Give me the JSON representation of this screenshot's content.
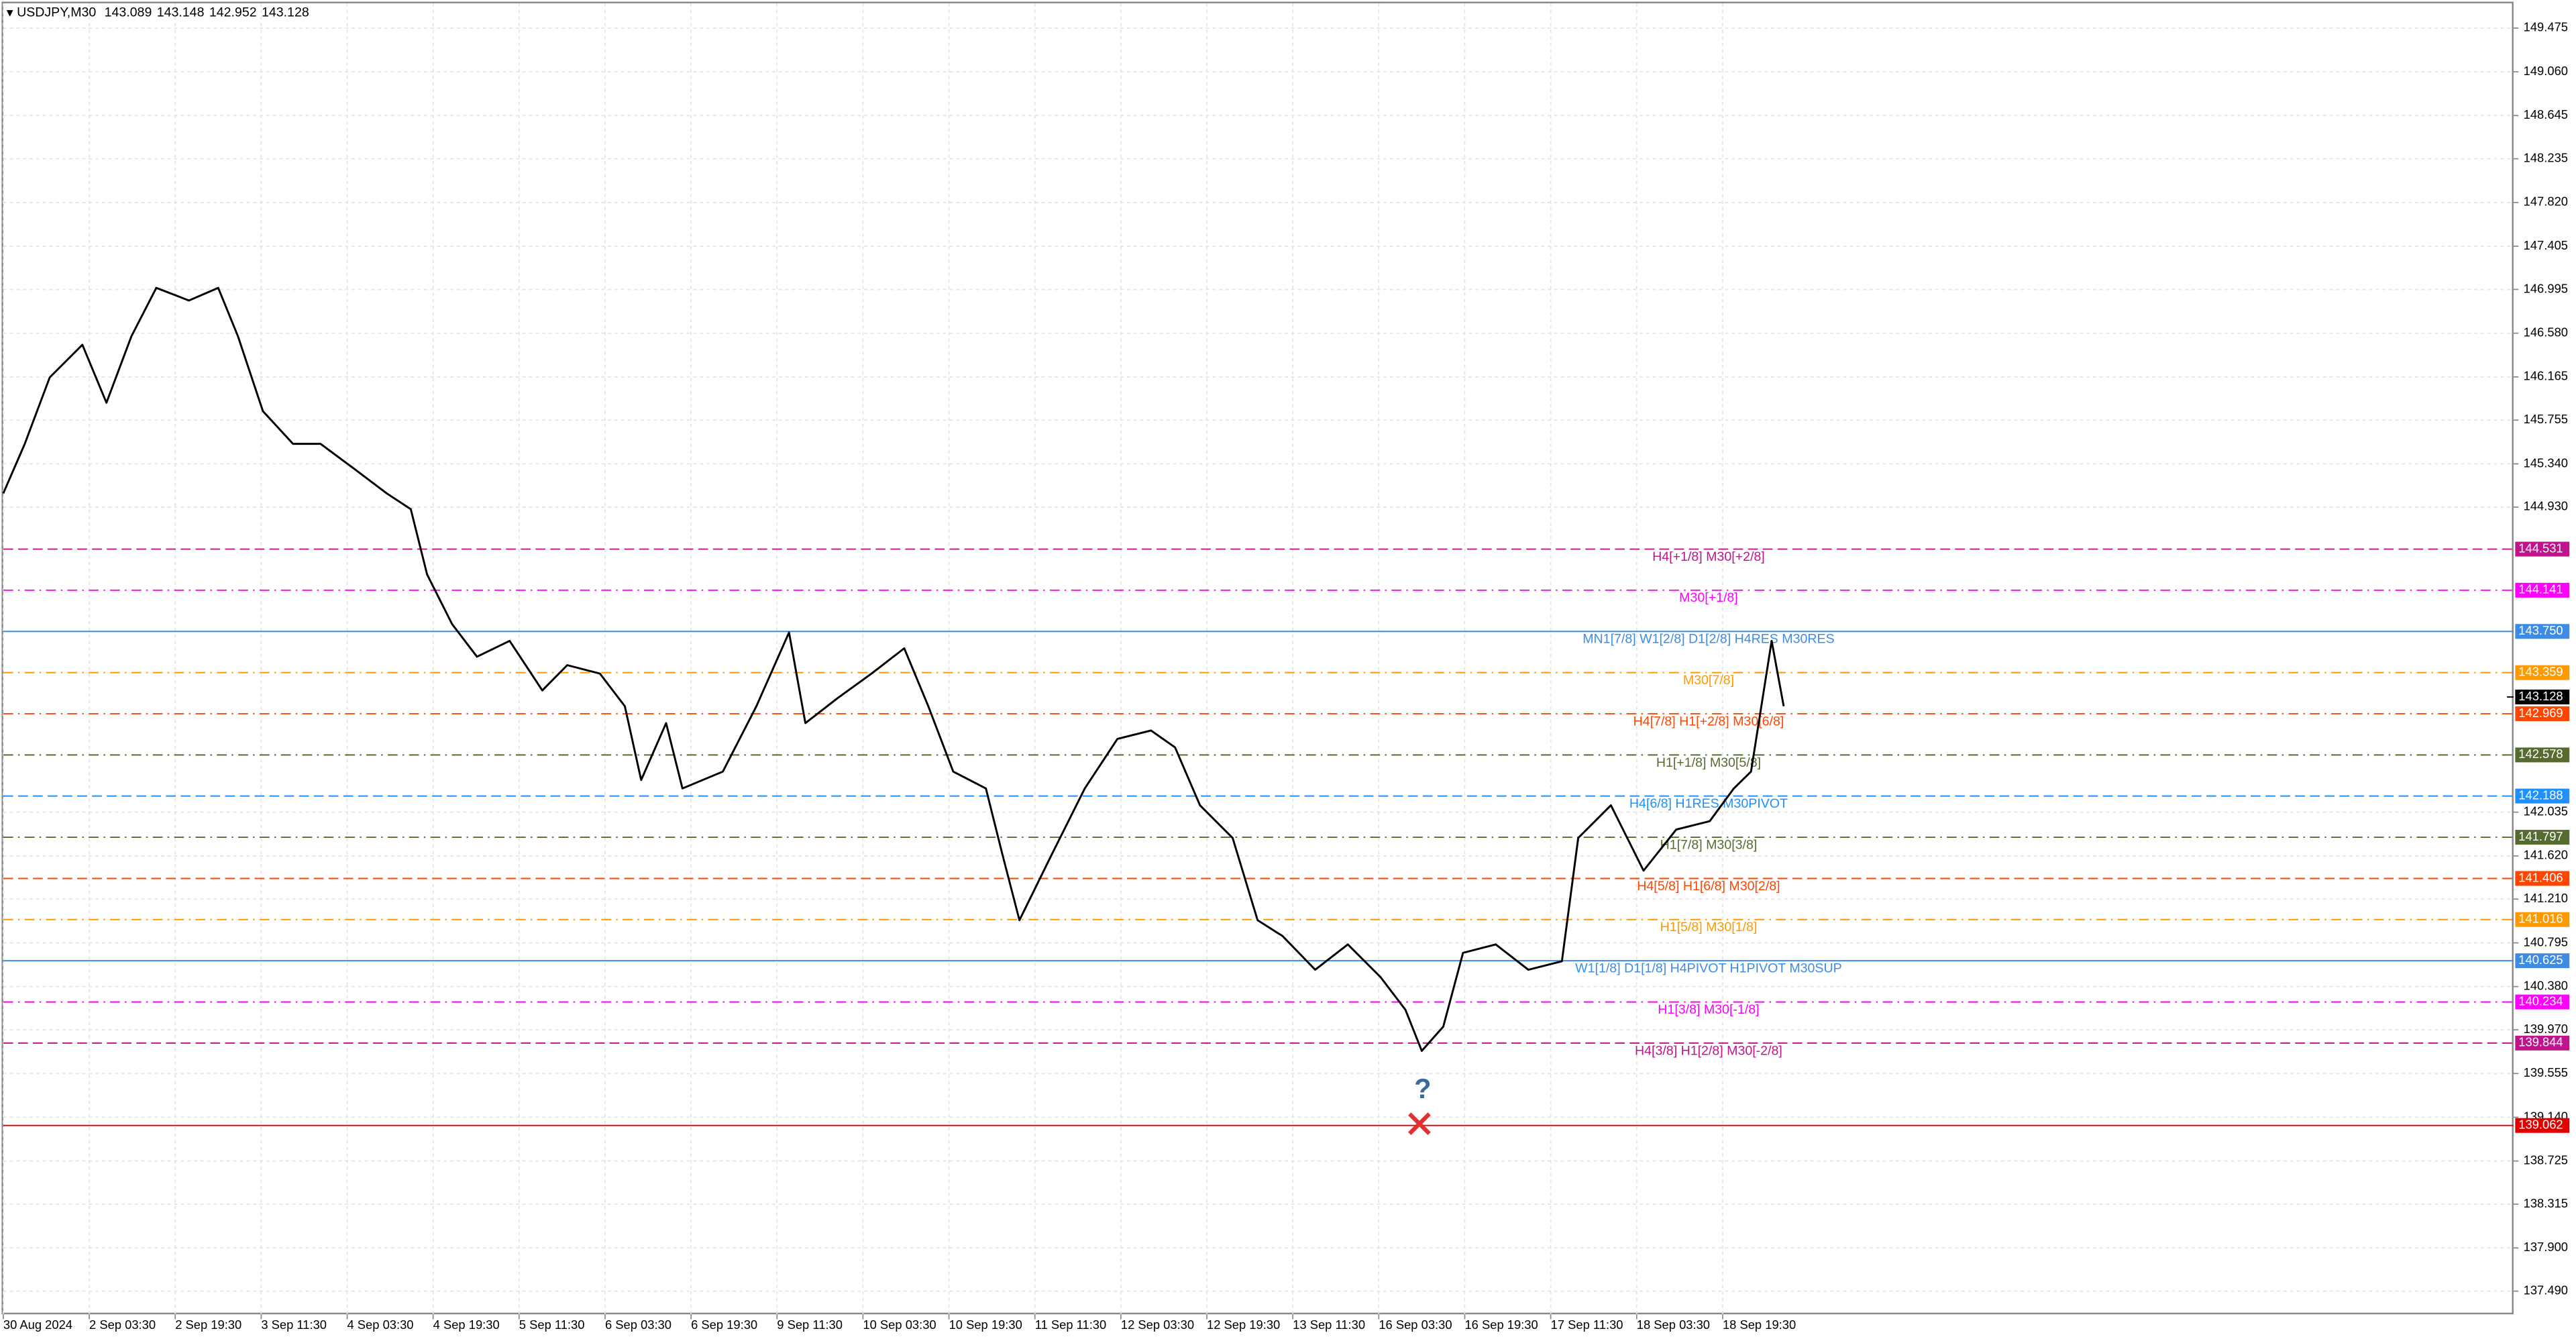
{
  "chart_data": {
    "type": "line",
    "symbol": "USDJPY,M30",
    "ohlc": [
      143.089,
      143.148,
      142.952,
      143.128
    ],
    "xlim": [
      0,
      29.2
    ],
    "xticks": [
      {
        "value": 0,
        "label": "30 Aug 2024"
      },
      {
        "value": 1,
        "label": "2 Sep 03:30"
      },
      {
        "value": 2,
        "label": "2 Sep 19:30"
      },
      {
        "value": 3,
        "label": "3 Sep 11:30"
      },
      {
        "value": 4,
        "label": "4 Sep 03:30"
      },
      {
        "value": 5,
        "label": "4 Sep 19:30"
      },
      {
        "value": 6,
        "label": "5 Sep 11:30"
      },
      {
        "value": 7,
        "label": "6 Sep 03:30"
      },
      {
        "value": 8,
        "label": "6 Sep 19:30"
      },
      {
        "value": 9,
        "label": "9 Sep 11:30"
      },
      {
        "value": 10,
        "label": "10 Sep 03:30"
      },
      {
        "value": 11,
        "label": "10 Sep 19:30"
      },
      {
        "value": 12,
        "label": "11 Sep 11:30"
      },
      {
        "value": 13,
        "label": "12 Sep 03:30"
      },
      {
        "value": 14,
        "label": "12 Sep 19:30"
      },
      {
        "value": 15,
        "label": "13 Sep 11:30"
      },
      {
        "value": 16,
        "label": "16 Sep 03:30"
      },
      {
        "value": 17,
        "label": "16 Sep 19:30"
      },
      {
        "value": 18,
        "label": "17 Sep 11:30"
      },
      {
        "value": 19,
        "label": "18 Sep 03:30"
      },
      {
        "value": 20,
        "label": "18 Sep 19:30"
      }
    ],
    "ylim": [
      137.27,
      149.71
    ],
    "yticks": [
      149.475,
      {
        "value": 149.06,
        "label": "149.060"
      },
      148.645,
      148.235,
      {
        "value": 147.82,
        "label": "147.820"
      },
      147.405,
      146.995,
      {
        "value": 146.58,
        "label": "146.580"
      },
      146.165,
      145.755,
      {
        "value": 145.34,
        "label": "145.340"
      },
      {
        "value": 144.93,
        "label": "144.930"
      },
      142.035,
      {
        "value": 141.62,
        "label": "141.620"
      },
      {
        "value": 141.21,
        "label": "141.210"
      },
      140.795,
      {
        "value": 140.38,
        "label": "140.380"
      },
      {
        "value": 139.97,
        "label": "139.970"
      },
      139.555,
      {
        "value": 139.14,
        "label": "139.140"
      },
      138.725,
      138.315,
      {
        "value": 137.9,
        "label": "137.900"
      },
      {
        "value": 137.49,
        "label": "137.490"
      }
    ],
    "grid": true,
    "x": [
      0,
      0.25,
      0.54,
      0.92,
      1.2,
      1.49,
      1.78,
      2.16,
      2.5,
      2.73,
      3.02,
      3.37,
      3.69,
      4.07,
      4.46,
      4.74,
      4.93,
      5.22,
      5.51,
      5.89,
      6.27,
      6.56,
      6.94,
      7.23,
      7.42,
      7.71,
      7.9,
      8.37,
      8.76,
      9.14,
      9.33,
      9.71,
      10.1,
      10.48,
      10.76,
      11.05,
      11.43,
      11.62,
      11.82,
      12.2,
      12.58,
      12.96,
      13.35,
      13.63,
      13.92,
      14.3,
      14.59,
      14.88,
      15.26,
      15.64,
      16.02,
      16.31,
      16.5,
      16.75,
      16.98,
      17.36,
      17.74,
      18.13,
      18.32,
      18.7,
      19.08,
      19.46,
      19.85,
      20.13,
      20.33,
      20.57,
      20.71
    ],
    "series": [
      {
        "color": "#000000",
        "values": [
          145.06,
          145.53,
          146.16,
          146.47,
          145.92,
          146.55,
          147.01,
          146.89,
          147.01,
          146.55,
          145.84,
          145.53,
          145.53,
          145.3,
          145.06,
          144.91,
          144.29,
          143.82,
          143.51,
          143.66,
          143.19,
          143.43,
          143.35,
          143.04,
          142.34,
          142.88,
          142.26,
          142.42,
          143.04,
          143.74,
          142.88,
          143.12,
          143.35,
          143.59,
          143.04,
          142.42,
          142.26,
          141.64,
          141.01,
          141.64,
          142.26,
          142.73,
          142.81,
          142.65,
          142.1,
          141.79,
          141.01,
          140.86,
          140.54,
          140.78,
          140.47,
          140.16,
          139.77,
          140.0,
          140.7,
          140.78,
          140.54,
          140.62,
          141.79,
          142.1,
          141.48,
          141.87,
          141.95,
          142.26,
          142.42,
          143.66,
          143.04
        ]
      }
    ],
    "levels": [
      {
        "price": 144.531,
        "price_label": "144.531",
        "label": "H4[+1/8] M30[+2/8]",
        "color": "#c0148c",
        "dash": "dashed"
      },
      {
        "price": 144.141,
        "price_label": "144.141",
        "label": "M30[+1/8]",
        "color": "#ff00ff",
        "dash": "dashdot"
      },
      {
        "price": 143.75,
        "price_label": "143.750",
        "label": "MN1[7/8] W1[2/8] D1[2/8] H4RES M30RES",
        "color": "#3c8ce6",
        "dash": "solid"
      },
      {
        "price": 143.359,
        "price_label": "143.359",
        "label": "M30[7/8]",
        "color": "#ff9900",
        "dash": "dashdot"
      },
      {
        "price": 142.969,
        "price_label": "142.969",
        "label": "H4[7/8] H1[+2/8] M30[6/8]",
        "color": "#ff4500",
        "dash": "dashdot"
      },
      {
        "price": 142.578,
        "price_label": "142.578",
        "label": "H1[+1/8] M30[5/8]",
        "color": "#556b2f",
        "dash": "dashdot"
      },
      {
        "price": 142.188,
        "price_label": "142.188",
        "label": "H4[6/8] H1RES M30PIVOT",
        "color": "#1e90ff",
        "dash": "dashed"
      },
      {
        "price": 141.797,
        "price_label": "141.797",
        "label": "H1[7/8] M30[3/8]",
        "color": "#556b2f",
        "dash": "dashdot"
      },
      {
        "price": 141.406,
        "price_label": "141.406",
        "label": "H4[5/8] H1[6/8] M30[2/8]",
        "color": "#ff4500",
        "dash": "dashed"
      },
      {
        "price": 141.016,
        "price_label": "141.016",
        "label": "H1[5/8] M30[1/8]",
        "color": "#ff9900",
        "dash": "dashdot"
      },
      {
        "price": 140.625,
        "price_label": "140.625",
        "label": "W1[1/8] D1[1/8] H4PIVOT H1PIVOT M30SUP",
        "color": "#3c8ce6",
        "dash": "solid"
      },
      {
        "price": 140.234,
        "price_label": "140.234",
        "label": "H1[3/8] M30[-1/8]",
        "color": "#ff00ff",
        "dash": "dashdot"
      },
      {
        "price": 139.844,
        "price_label": "139.844",
        "label": "H4[3/8] H1[2/8] M30[-2/8]",
        "color": "#c0148c",
        "dash": "dashed"
      },
      {
        "price": 139.062,
        "price_label": "139.062",
        "color": "#e00000",
        "dash": "solid"
      }
    ]
  }
}
